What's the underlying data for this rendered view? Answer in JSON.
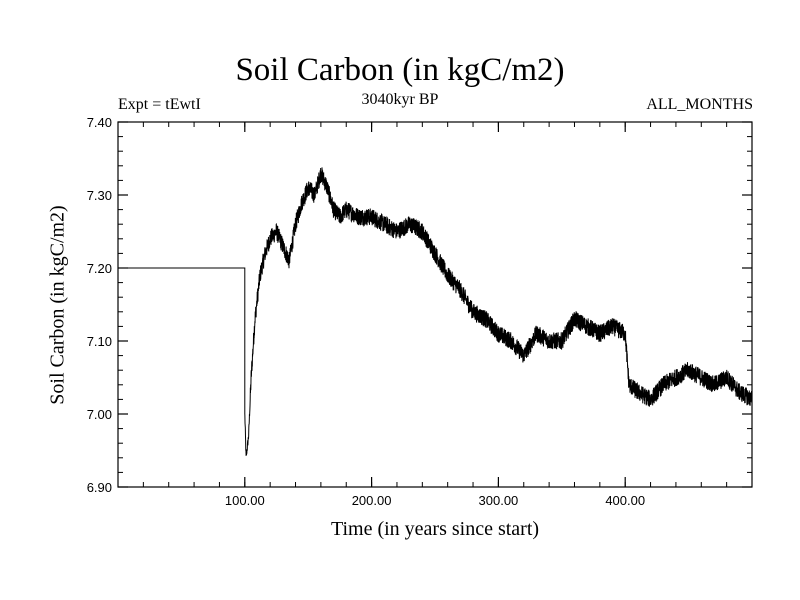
{
  "chart_data": {
    "type": "line",
    "title": "Soil Carbon (in kgC/m2)",
    "subtitle_left": "Expt = tEwtI",
    "subtitle_center": "3040kyr BP",
    "subtitle_right": "ALL_MONTHS",
    "xlabel": "Time (in years since start)",
    "ylabel": "Soil Carbon (in kgC/m2)",
    "xlim": [
      0,
      500
    ],
    "ylim": [
      6.9,
      7.4
    ],
    "xticks": [
      100,
      200,
      300,
      400
    ],
    "xtick_labels": [
      "100.00",
      "200.00",
      "300.00",
      "400.00"
    ],
    "yticks": [
      6.9,
      7.0,
      7.1,
      7.2,
      7.3,
      7.4
    ],
    "ytick_labels": [
      "6.90",
      "7.00",
      "7.10",
      "7.20",
      "7.30",
      "7.40"
    ],
    "grid": false,
    "line_color": "#000000",
    "series": [
      {
        "x": [
          0,
          100,
          100,
          101,
          103,
          105,
          108,
          112,
          116,
          120,
          125,
          130,
          135,
          140,
          145,
          150,
          155,
          160,
          165,
          170,
          175,
          180,
          190,
          200,
          210,
          220,
          230,
          240,
          250,
          260,
          270,
          280,
          290,
          300,
          310,
          320,
          330,
          340,
          350,
          360,
          370,
          380,
          390,
          400,
          403,
          410,
          420,
          430,
          440,
          450,
          460,
          470,
          480,
          490,
          500
        ],
        "y": [
          7.2,
          7.2,
          7.0,
          6.94,
          6.97,
          7.05,
          7.13,
          7.19,
          7.22,
          7.24,
          7.25,
          7.23,
          7.21,
          7.26,
          7.29,
          7.31,
          7.3,
          7.33,
          7.31,
          7.28,
          7.27,
          7.28,
          7.27,
          7.27,
          7.26,
          7.25,
          7.26,
          7.25,
          7.22,
          7.19,
          7.17,
          7.14,
          7.13,
          7.11,
          7.1,
          7.08,
          7.11,
          7.1,
          7.1,
          7.13,
          7.12,
          7.11,
          7.12,
          7.11,
          7.04,
          7.03,
          7.02,
          7.04,
          7.05,
          7.06,
          7.05,
          7.04,
          7.05,
          7.03,
          7.02
        ]
      }
    ]
  }
}
